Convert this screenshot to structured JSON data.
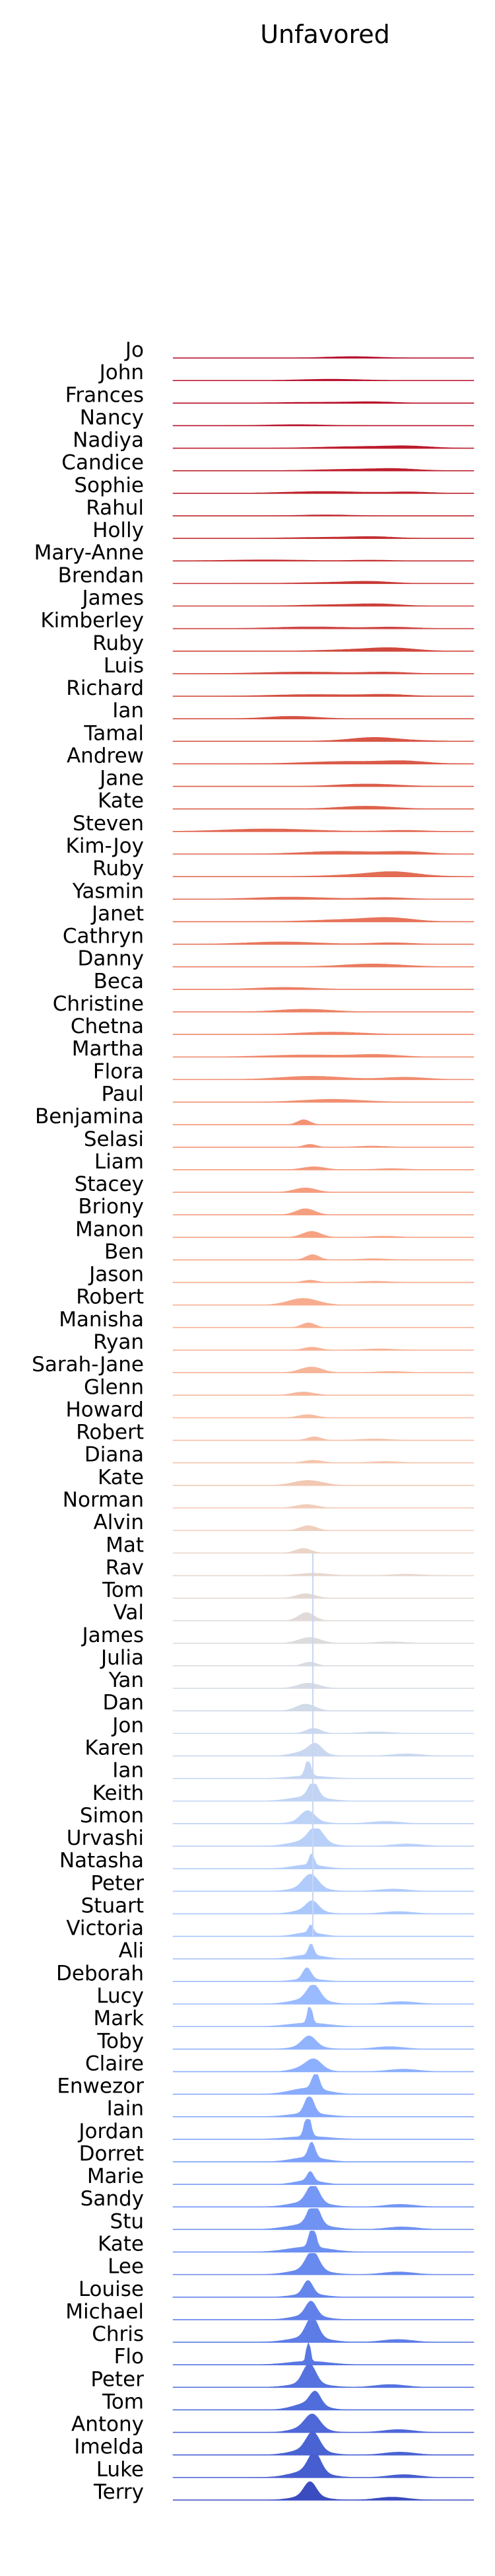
{
  "chart_data": {
    "type": "area",
    "title": "Unfavored",
    "xlabel": "",
    "ylabel": "",
    "series": [
      {
        "name": "Jo",
        "color": "#b40426"
      },
      {
        "name": "John",
        "color": "#b50927"
      },
      {
        "name": "Frances",
        "color": "#b70d28"
      },
      {
        "name": "Nancy",
        "color": "#b8122a"
      },
      {
        "name": "Nadiya",
        "color": "#bb1b2c"
      },
      {
        "name": "Candice",
        "color": "#bd1f2d"
      },
      {
        "name": "Sophie",
        "color": "#be242e"
      },
      {
        "name": "Rahul",
        "color": "#c0282f"
      },
      {
        "name": "Holly",
        "color": "#c32e31"
      },
      {
        "name": "Mary-Anne",
        "color": "#c53334"
      },
      {
        "name": "Brendan",
        "color": "#c83836"
      },
      {
        "name": "James",
        "color": "#cc403a"
      },
      {
        "name": "Kimberley",
        "color": "#ce4543"
      },
      {
        "name": "Ruby",
        "color": "#d0473d"
      },
      {
        "name": "Luis",
        "color": "#d24b40"
      },
      {
        "name": "Richard",
        "color": "#d44e41"
      },
      {
        "name": "Ian",
        "color": "#d65244"
      },
      {
        "name": "Tamal",
        "color": "#d85646"
      },
      {
        "name": "Andrew",
        "color": "#da5a49"
      },
      {
        "name": "Jane",
        "color": "#dc5d4a"
      },
      {
        "name": "Kate",
        "color": "#de614d"
      },
      {
        "name": "Steven",
        "color": "#e0654f"
      },
      {
        "name": "Kim-Joy",
        "color": "#e26952"
      },
      {
        "name": "Ruby",
        "color": "#e36c55"
      },
      {
        "name": "Yasmin",
        "color": "#e57058"
      },
      {
        "name": "Janet",
        "color": "#e7745b"
      },
      {
        "name": "Cathryn",
        "color": "#e8765c"
      },
      {
        "name": "Danny",
        "color": "#ea7b60"
      },
      {
        "name": "Beca",
        "color": "#eb7d62"
      },
      {
        "name": "Christine",
        "color": "#ec8165"
      },
      {
        "name": "Chetna",
        "color": "#ee8468"
      },
      {
        "name": "Martha",
        "color": "#ef886b"
      },
      {
        "name": "Flora",
        "color": "#f08b6e"
      },
      {
        "name": "Paul",
        "color": "#f18f71"
      },
      {
        "name": "Benjamina",
        "color": "#f29274"
      },
      {
        "name": "Selasi",
        "color": "#f39577"
      },
      {
        "name": "Liam",
        "color": "#f4987a"
      },
      {
        "name": "Stacey",
        "color": "#f59c7d"
      },
      {
        "name": "Briony",
        "color": "#f59f80"
      },
      {
        "name": "Manon",
        "color": "#f6a283"
      },
      {
        "name": "Ben",
        "color": "#f7a688"
      },
      {
        "name": "Jason",
        "color": "#f7a98b"
      },
      {
        "name": "Robert",
        "color": "#f7ac8e"
      },
      {
        "name": "Manisha",
        "color": "#f7af91"
      },
      {
        "name": "Ryan",
        "color": "#f7b396"
      },
      {
        "name": "Sarah-Jane",
        "color": "#f7b599"
      },
      {
        "name": "Glenn",
        "color": "#f6b89c"
      },
      {
        "name": "Howard",
        "color": "#f6bda2"
      },
      {
        "name": "Robert",
        "color": "#f5c0a7"
      },
      {
        "name": "Diana",
        "color": "#f4c5ad"
      },
      {
        "name": "Kate",
        "color": "#f2c8b2"
      },
      {
        "name": "Norman",
        "color": "#f1cdba"
      },
      {
        "name": "Alvin",
        "color": "#efcfbf"
      },
      {
        "name": "Mat",
        "color": "#ead5c9"
      },
      {
        "name": "Rav",
        "color": "#e7d7ce"
      },
      {
        "name": "Tom",
        "color": "#e4d9d2"
      },
      {
        "name": "Val",
        "color": "#e0dbd8"
      },
      {
        "name": "James",
        "color": "#dddcdc"
      },
      {
        "name": "Julia",
        "color": "#d9dce1"
      },
      {
        "name": "Yan",
        "color": "#d6dce4"
      },
      {
        "name": "Dan",
        "color": "#d2dbe8"
      },
      {
        "name": "Jon",
        "color": "#ccd9ed"
      },
      {
        "name": "Karen",
        "color": "#c9d7f0"
      },
      {
        "name": "Ian",
        "color": "#c4d5f3"
      },
      {
        "name": "Keith",
        "color": "#c1d4f4"
      },
      {
        "name": "Simon",
        "color": "#bcd2f7"
      },
      {
        "name": "Urvashi",
        "color": "#b9d0f9"
      },
      {
        "name": "Natasha",
        "color": "#b3cdfb"
      },
      {
        "name": "Peter",
        "color": "#b0cbfc"
      },
      {
        "name": "Stuart",
        "color": "#abc8fd"
      },
      {
        "name": "Victoria",
        "color": "#a7c5fe"
      },
      {
        "name": "Ali",
        "color": "#a3c2fe"
      },
      {
        "name": "Deborah",
        "color": "#9ebeff"
      },
      {
        "name": "Lucy",
        "color": "#9abbff"
      },
      {
        "name": "Mark",
        "color": "#96b7ff"
      },
      {
        "name": "Toby",
        "color": "#92b4fe"
      },
      {
        "name": "Claire",
        "color": "#8db0fe"
      },
      {
        "name": "Enwezor",
        "color": "#89acfd"
      },
      {
        "name": "Iain",
        "color": "#85a8fc"
      },
      {
        "name": "Jordan",
        "color": "#81a4fb"
      },
      {
        "name": "Dorret",
        "color": "#7da0f9"
      },
      {
        "name": "Marie",
        "color": "#799cf8"
      },
      {
        "name": "Sandy",
        "color": "#7597f6"
      },
      {
        "name": "Stu",
        "color": "#7093f3"
      },
      {
        "name": "Kate",
        "color": "#6c8ff1"
      },
      {
        "name": "Lee",
        "color": "#6889ee"
      },
      {
        "name": "Louise",
        "color": "#6485ec"
      },
      {
        "name": "Michael",
        "color": "#6180e9"
      },
      {
        "name": "Chris",
        "color": "#5d7ce6"
      },
      {
        "name": "Flo",
        "color": "#5977e3"
      },
      {
        "name": "Peter",
        "color": "#5572df"
      },
      {
        "name": "Tom",
        "color": "#516ddb"
      },
      {
        "name": "Antony",
        "color": "#4e68d8"
      },
      {
        "name": "Imelda",
        "color": "#4a63d3"
      },
      {
        "name": "Luke",
        "color": "#465ecf"
      },
      {
        "name": "Terry",
        "color": "#3b4cc0"
      }
    ],
    "grid": false,
    "legend": "none"
  }
}
